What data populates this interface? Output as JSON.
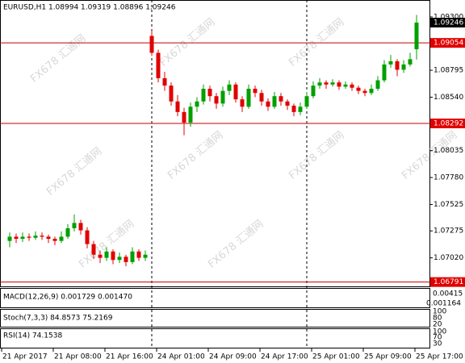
{
  "chart_data": {
    "type": "candlestick",
    "title": "EURUSD,H1  1.08994 1.09319 1.08896 1.09246",
    "up_color": "#00a000",
    "down_color": "#e00000",
    "ylim": [
      1.0675,
      1.0946
    ],
    "yticks": [
      {
        "value": 1.093,
        "label": "1.09300"
      },
      {
        "value": 1.08795,
        "label": "1.08795"
      },
      {
        "value": 1.0854,
        "label": "1.08540"
      },
      {
        "value": 1.08035,
        "label": "1.08035"
      },
      {
        "value": 1.0778,
        "label": "1.07780"
      },
      {
        "value": 1.07525,
        "label": "1.07525"
      },
      {
        "value": 1.07275,
        "label": "1.07275"
      },
      {
        "value": 1.0702,
        "label": "1.07020"
      }
    ],
    "levels": [
      {
        "value": 1.09054,
        "label": "1.09054"
      },
      {
        "value": 1.08292,
        "label": "1.08292"
      },
      {
        "value": 1.06791,
        "label": "1.06791"
      }
    ],
    "last_price": {
      "value": 1.09246,
      "label": "1.09246"
    },
    "time_labels": [
      "21 Apr 2017",
      "21 Apr 08:00",
      "21 Apr 16:00",
      "24 Apr 01:00",
      "24 Apr 09:00",
      "24 Apr 17:00",
      "25 Apr 01:00",
      "25 Apr 09:00",
      "25 Apr 17:00"
    ],
    "watermark": "FX678 汇通网",
    "candles": {
      "open": [
        1.0718,
        1.0722,
        1.072,
        1.0722,
        1.0721,
        1.0723,
        1.0722,
        1.072,
        1.0718,
        1.0722,
        1.073,
        1.0735,
        1.0728,
        1.0715,
        1.0705,
        1.0702,
        1.0708,
        1.07,
        1.0703,
        1.0698,
        1.0708,
        1.0702,
        1.0912,
        1.0896,
        1.0872,
        1.0865,
        1.085,
        1.084,
        1.083,
        1.0845,
        1.085,
        1.0862,
        1.0855,
        1.0848,
        1.086,
        1.0866,
        1.0852,
        1.0845,
        1.0862,
        1.0858,
        1.085,
        1.0845,
        1.0855,
        1.085,
        1.0846,
        1.084,
        1.0845,
        1.0855,
        1.0865,
        1.0868,
        1.0866,
        1.0868,
        1.0864,
        1.0866,
        1.0863,
        1.086,
        1.0858,
        1.0862,
        1.087,
        1.0885,
        1.0888,
        1.088,
        1.0885,
        1.08994
      ],
      "high": [
        1.0726,
        1.0725,
        1.0726,
        1.0725,
        1.0727,
        1.0726,
        1.0724,
        1.0722,
        1.0727,
        1.0734,
        1.0743,
        1.0738,
        1.0731,
        1.0718,
        1.0709,
        1.0712,
        1.071,
        1.0707,
        1.0705,
        1.0712,
        1.071,
        1.0709,
        1.0917,
        1.0899,
        1.0878,
        1.0868,
        1.0856,
        1.0844,
        1.0849,
        1.0854,
        1.0866,
        1.0865,
        1.0858,
        1.0864,
        1.087,
        1.0868,
        1.0855,
        1.0866,
        1.0865,
        1.0861,
        1.0853,
        1.0859,
        1.0858,
        1.0852,
        1.0848,
        1.0849,
        1.0859,
        1.0869,
        1.0872,
        1.087,
        1.0871,
        1.087,
        1.0869,
        1.0868,
        1.0865,
        1.0862,
        1.0866,
        1.0874,
        1.0889,
        1.0894,
        1.089,
        1.0889,
        1.0896,
        1.09319
      ],
      "low": [
        1.0712,
        1.0716,
        1.0717,
        1.0718,
        1.0719,
        1.0719,
        1.0716,
        1.0714,
        1.0716,
        1.072,
        1.0727,
        1.0724,
        1.0711,
        1.0701,
        1.0697,
        1.0699,
        1.0696,
        1.0697,
        1.0694,
        1.0696,
        1.0699,
        1.0699,
        1.0893,
        1.0868,
        1.086,
        1.0846,
        1.0836,
        1.0818,
        1.0826,
        1.084,
        1.0847,
        1.085,
        1.0843,
        1.0845,
        1.0856,
        1.0849,
        1.084,
        1.0843,
        1.0854,
        1.0846,
        1.0841,
        1.0843,
        1.0846,
        1.0842,
        1.0836,
        1.0837,
        1.0843,
        1.0853,
        1.0862,
        1.0862,
        1.0864,
        1.0861,
        1.0862,
        1.086,
        1.0857,
        1.0855,
        1.0856,
        1.086,
        1.0868,
        1.0882,
        1.0874,
        1.0877,
        1.0883,
        1.08896
      ],
      "close": [
        1.0722,
        1.072,
        1.0722,
        1.0721,
        1.0723,
        1.0722,
        1.072,
        1.0718,
        1.0722,
        1.073,
        1.0735,
        1.0728,
        1.0715,
        1.0705,
        1.0702,
        1.0708,
        1.07,
        1.0703,
        1.0698,
        1.0708,
        1.0702,
        1.0705,
        1.0896,
        1.0872,
        1.0865,
        1.085,
        1.084,
        1.083,
        1.0845,
        1.085,
        1.0862,
        1.0855,
        1.0848,
        1.086,
        1.0866,
        1.0852,
        1.0845,
        1.0862,
        1.0858,
        1.085,
        1.0845,
        1.0855,
        1.085,
        1.0846,
        1.084,
        1.0845,
        1.0855,
        1.0865,
        1.0868,
        1.0866,
        1.0868,
        1.0864,
        1.0866,
        1.0863,
        1.086,
        1.0858,
        1.0862,
        1.087,
        1.0885,
        1.0888,
        1.088,
        1.0885,
        1.089,
        1.09246
      ]
    },
    "panels": [
      {
        "title": "MACD(12,26,9) 0.001729 0.001470",
        "labels": [
          "0.00415",
          "0.001164"
        ]
      },
      {
        "title": "Stoch(7,3,3) 84.8573 75.2169",
        "labels": [
          "100",
          "80",
          "20"
        ]
      },
      {
        "title": "RSI(14) 74.1538",
        "labels": [
          "100",
          "70",
          "30"
        ]
      }
    ]
  }
}
